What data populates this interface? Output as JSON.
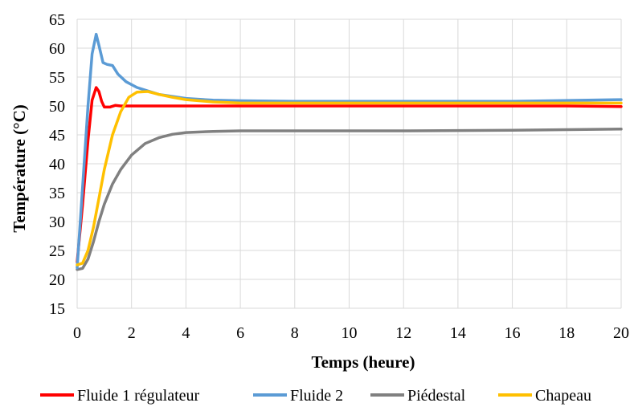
{
  "chart_data": {
    "type": "line",
    "xlabel": "Temps (heure)",
    "ylabel": "Température (°C)",
    "xlim": [
      0,
      20
    ],
    "ylim": [
      15,
      65
    ],
    "xticks": [
      0,
      2,
      4,
      6,
      8,
      10,
      12,
      14,
      16,
      18,
      20
    ],
    "yticks": [
      15,
      20,
      25,
      30,
      35,
      40,
      45,
      50,
      55,
      60,
      65
    ],
    "grid": true,
    "legend_position": "bottom",
    "series": [
      {
        "name": "Fluide 1 régulateur",
        "color": "#ff0000",
        "x": [
          0,
          0.2,
          0.4,
          0.55,
          0.7,
          0.8,
          0.9,
          1.0,
          1.2,
          1.4,
          1.6,
          1.8,
          2.0,
          3,
          4,
          6,
          10,
          14,
          18,
          20
        ],
        "y": [
          23,
          33,
          44,
          51,
          53.2,
          52.5,
          50.8,
          49.8,
          49.8,
          50.1,
          50,
          50,
          50,
          50,
          50,
          50,
          50,
          50,
          50,
          49.9
        ]
      },
      {
        "name": "Fluide 2",
        "color": "#5b9bd5",
        "x": [
          0,
          0.2,
          0.4,
          0.55,
          0.7,
          0.8,
          0.95,
          1.1,
          1.3,
          1.5,
          1.8,
          2.2,
          2.6,
          3,
          4,
          5,
          6,
          8,
          12,
          16,
          20
        ],
        "y": [
          22,
          36,
          50,
          59,
          62.4,
          60.5,
          57.5,
          57.2,
          57,
          55.5,
          54.2,
          53.2,
          52.6,
          52,
          51.3,
          51,
          50.9,
          50.8,
          50.8,
          50.8,
          51.1
        ]
      },
      {
        "name": "Piédestal",
        "color": "#808080",
        "x": [
          0,
          0.2,
          0.4,
          0.6,
          0.8,
          1.0,
          1.3,
          1.6,
          2.0,
          2.5,
          3.0,
          3.5,
          4.0,
          5,
          6,
          8,
          12,
          16,
          20
        ],
        "y": [
          21.7,
          21.9,
          23.5,
          26.5,
          30,
          33,
          36.5,
          39,
          41.5,
          43.5,
          44.5,
          45.1,
          45.4,
          45.6,
          45.7,
          45.7,
          45.7,
          45.8,
          46
        ]
      },
      {
        "name": "Chapeau",
        "color": "#ffc000",
        "x": [
          0,
          0.2,
          0.4,
          0.6,
          0.8,
          1.0,
          1.3,
          1.6,
          1.9,
          2.2,
          2.6,
          3.0,
          3.5,
          4.0,
          5,
          6,
          8,
          12,
          16,
          20
        ],
        "y": [
          22.5,
          22.8,
          25,
          29,
          34,
          39,
          45,
          49,
          51.5,
          52.4,
          52.5,
          52,
          51.5,
          51.1,
          50.7,
          50.5,
          50.5,
          50.5,
          50.5,
          50.5
        ]
      }
    ]
  }
}
